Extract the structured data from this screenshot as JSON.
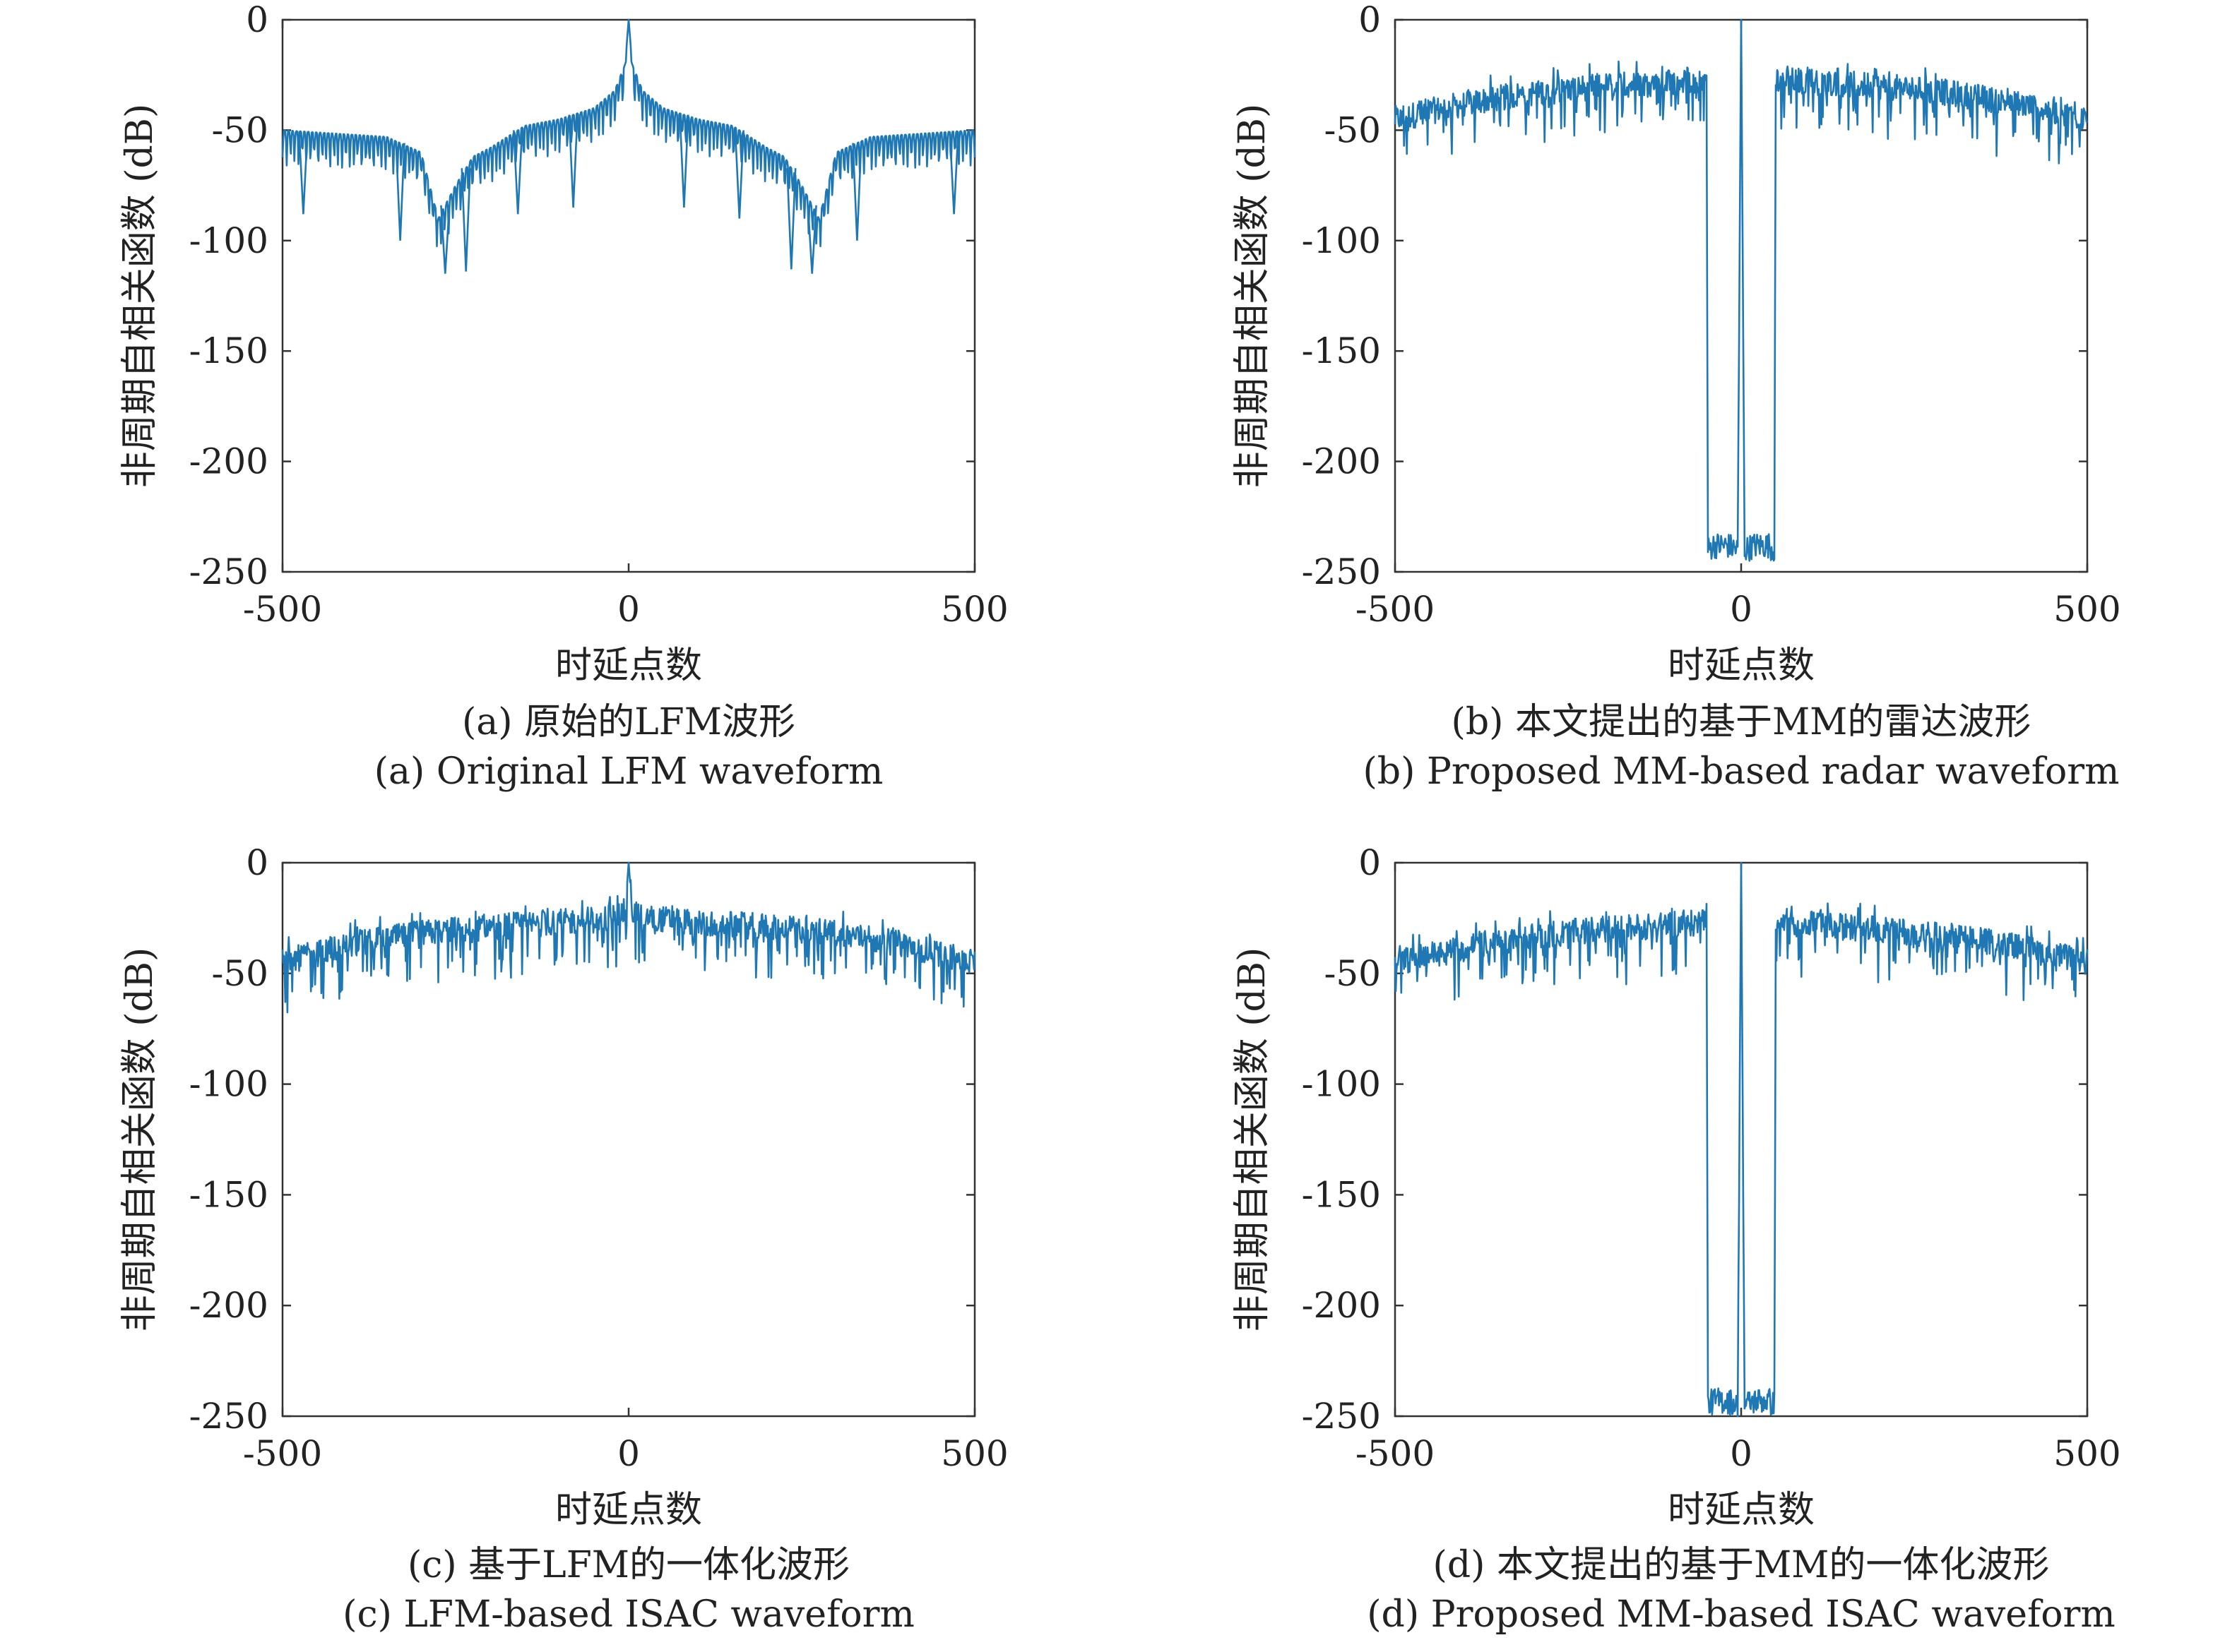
{
  "chart_data": [
    {
      "type": "line",
      "panel": "a",
      "xlabel": "时延点数",
      "ylabel": "非周期自相关函数 (dB)",
      "xlim": [
        -500,
        500
      ],
      "ylim": [
        -250,
        0
      ],
      "xticks": [
        -500,
        0,
        500
      ],
      "yticks": [
        0,
        -50,
        -100,
        -150,
        -200,
        -250
      ],
      "caption_cn": "(a) 原始的LFM波形",
      "caption_en": "(a) Original LFM waveform",
      "color": "#1f77b4",
      "series": [
        {
          "x": [
            -500,
            -450,
            -400,
            -350,
            -300,
            -275,
            -250,
            -225,
            -200,
            -150,
            -100,
            -50,
            -20,
            -5,
            0,
            5,
            20,
            50,
            100,
            150,
            200,
            225,
            250,
            275,
            300,
            350,
            400,
            450,
            500
          ],
          "y": [
            -50,
            -51,
            -52,
            -53,
            -60,
            -90,
            -75,
            -62,
            -58,
            -48,
            -45,
            -40,
            -32,
            -20,
            0,
            -20,
            -32,
            -40,
            -45,
            -48,
            -58,
            -62,
            -75,
            -90,
            -60,
            -53,
            -52,
            -51,
            -50
          ],
          "nulls": [
            {
              "x": -470,
              "y": -88
            },
            {
              "x": -330,
              "y": -100
            },
            {
              "x": -265,
              "y": -115
            },
            {
              "x": -235,
              "y": -114
            },
            {
              "x": -160,
              "y": -88
            },
            {
              "x": -80,
              "y": -85
            },
            {
              "x": 80,
              "y": -85
            },
            {
              "x": 160,
              "y": -90
            },
            {
              "x": 235,
              "y": -113
            },
            {
              "x": 265,
              "y": -115
            },
            {
              "x": 330,
              "y": -100
            },
            {
              "x": 470,
              "y": -88
            }
          ]
        }
      ]
    },
    {
      "type": "line",
      "panel": "b",
      "xlabel": "时延点数",
      "ylabel": "非周期自相关函数 (dB)",
      "xlim": [
        -500,
        500
      ],
      "ylim": [
        -250,
        0
      ],
      "xticks": [
        -500,
        0,
        500
      ],
      "yticks": [
        0,
        -50,
        -100,
        -150,
        -200,
        -250
      ],
      "caption_cn": "(b) 本文提出的基于MM的雷达波形",
      "caption_en": "(b) Proposed MM-based radar waveform",
      "color": "#1f77b4",
      "series": [
        {
          "x": [
            -500,
            -400,
            -300,
            -200,
            -100,
            -50,
            -48,
            -40,
            -20,
            -5,
            0,
            5,
            20,
            40,
            48,
            50,
            100,
            200,
            300,
            400,
            500
          ],
          "y": [
            -45,
            -38,
            -33,
            -30,
            -28,
            -27,
            -240,
            -238,
            -238,
            -240,
            0,
            -240,
            -238,
            -238,
            -240,
            -27,
            -28,
            -30,
            -33,
            -38,
            -45
          ]
        }
      ]
    },
    {
      "type": "line",
      "panel": "c",
      "xlabel": "时延点数",
      "ylabel": "非周期自相关函数 (dB)",
      "xlim": [
        -500,
        500
      ],
      "ylim": [
        -250,
        0
      ],
      "xticks": [
        -500,
        0,
        500
      ],
      "yticks": [
        0,
        -50,
        -100,
        -150,
        -200,
        -250
      ],
      "caption_cn": "(c) 基于LFM的一体化波形",
      "caption_en": "(c) LFM-based ISAC waveform",
      "color": "#1f77b4",
      "series": [
        {
          "x": [
            -500,
            -400,
            -300,
            -200,
            -100,
            -30,
            -5,
            0,
            5,
            30,
            100,
            200,
            300,
            400,
            500
          ],
          "y": [
            -45,
            -37,
            -32,
            -29,
            -27,
            -25,
            -22,
            0,
            -22,
            -25,
            -27,
            -29,
            -32,
            -37,
            -45
          ]
        }
      ]
    },
    {
      "type": "line",
      "panel": "d",
      "xlabel": "时延点数",
      "ylabel": "非周期自相关函数 (dB)",
      "xlim": [
        -500,
        500
      ],
      "ylim": [
        -250,
        0
      ],
      "xticks": [
        -500,
        0,
        500
      ],
      "yticks": [
        0,
        -50,
        -100,
        -150,
        -200,
        -250
      ],
      "caption_cn": "(d) 本文提出的基于MM的一体化波形",
      "caption_en": "(d) Proposed MM-based ISAC waveform",
      "color": "#1f77b4",
      "series": [
        {
          "x": [
            -500,
            -400,
            -300,
            -200,
            -100,
            -50,
            -48,
            -40,
            -20,
            -5,
            0,
            5,
            20,
            40,
            48,
            50,
            100,
            200,
            300,
            400,
            500
          ],
          "y": [
            -45,
            -38,
            -33,
            -30,
            -28,
            -27,
            -245,
            -243,
            -243,
            -245,
            0,
            -245,
            -243,
            -243,
            -245,
            -27,
            -28,
            -30,
            -33,
            -38,
            -45
          ]
        }
      ]
    }
  ]
}
